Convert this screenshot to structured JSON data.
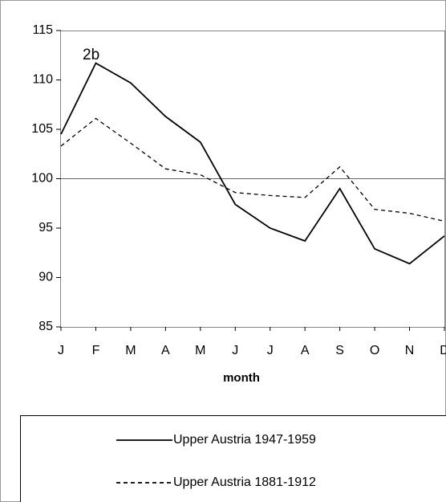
{
  "chart_data": {
    "type": "line",
    "annotation": "2b",
    "xlabel": "month",
    "categories": [
      "J",
      "F",
      "M",
      "A",
      "M",
      "J",
      "J",
      "A",
      "S",
      "O",
      "N",
      "D"
    ],
    "series": [
      {
        "name": "Upper Austria 1947-1959",
        "color": "#000000",
        "dash": "solid",
        "values": [
          104.5,
          111.7,
          109.7,
          106.3,
          103.7,
          97.4,
          95.0,
          93.7,
          99.0,
          92.9,
          91.4,
          94.2
        ]
      },
      {
        "name": "Upper Austria 1881-1912",
        "color": "#000000",
        "dash": "dashed",
        "values": [
          103.3,
          106.1,
          103.6,
          101.0,
          100.4,
          98.6,
          98.3,
          98.1,
          101.2,
          96.9,
          96.5,
          95.7
        ]
      }
    ],
    "ylim": [
      85,
      115
    ],
    "yticks": [
      85,
      90,
      95,
      100,
      105,
      110,
      115
    ],
    "reference_line": 100
  }
}
